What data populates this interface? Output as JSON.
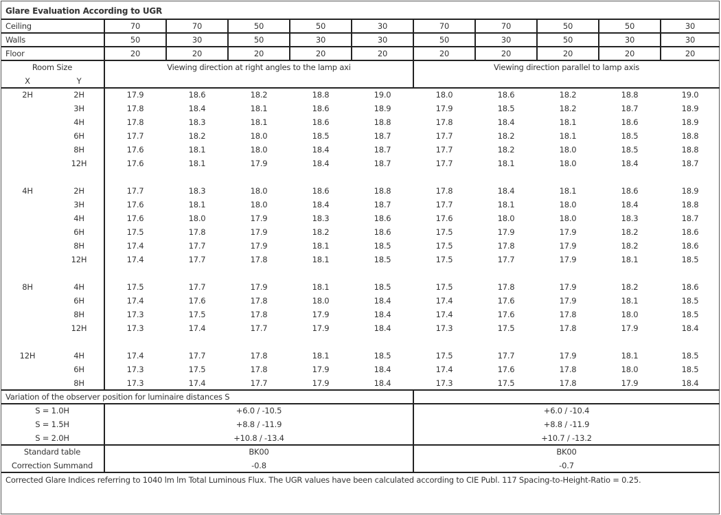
{
  "title": "Glare Evaluation According to UGR",
  "reflectances": [
    {
      "label": "Ceiling",
      "values": [
        "70",
        "70",
        "50",
        "50",
        "30",
        "70",
        "70",
        "50",
        "50",
        "30"
      ]
    },
    {
      "label": "Walls",
      "values": [
        "50",
        "30",
        "50",
        "30",
        "30",
        "50",
        "30",
        "50",
        "30",
        "30"
      ]
    },
    {
      "label": "Floor",
      "values": [
        "20",
        "20",
        "20",
        "20",
        "20",
        "20",
        "20",
        "20",
        "20",
        "20"
      ]
    }
  ],
  "header": {
    "room_size": "Room Size",
    "x": "X",
    "y": "Y",
    "right_angles": "Viewing direction at right angles to the lamp axi",
    "parallel": "Viewing direction parallel to lamp axis"
  },
  "groups": [
    {
      "x": "2H",
      "rows": [
        {
          "y": "2H",
          "values": [
            "17.9",
            "18.6",
            "18.2",
            "18.8",
            "19.0",
            "18.0",
            "18.6",
            "18.2",
            "18.8",
            "19.0"
          ]
        },
        {
          "y": "3H",
          "values": [
            "17.8",
            "18.4",
            "18.1",
            "18.6",
            "18.9",
            "17.9",
            "18.5",
            "18.2",
            "18.7",
            "18.9"
          ]
        },
        {
          "y": "4H",
          "values": [
            "17.8",
            "18.3",
            "18.1",
            "18.6",
            "18.8",
            "17.8",
            "18.4",
            "18.1",
            "18.6",
            "18.9"
          ]
        },
        {
          "y": "6H",
          "values": [
            "17.7",
            "18.2",
            "18.0",
            "18.5",
            "18.7",
            "17.7",
            "18.2",
            "18.1",
            "18.5",
            "18.8"
          ]
        },
        {
          "y": "8H",
          "values": [
            "17.6",
            "18.1",
            "18.0",
            "18.4",
            "18.7",
            "17.7",
            "18.2",
            "18.0",
            "18.5",
            "18.8"
          ]
        },
        {
          "y": "12H",
          "values": [
            "17.6",
            "18.1",
            "17.9",
            "18.4",
            "18.7",
            "17.7",
            "18.1",
            "18.0",
            "18.4",
            "18.7"
          ]
        }
      ]
    },
    {
      "x": "4H",
      "rows": [
        {
          "y": "2H",
          "values": [
            "17.7",
            "18.3",
            "18.0",
            "18.6",
            "18.8",
            "17.8",
            "18.4",
            "18.1",
            "18.6",
            "18.9"
          ]
        },
        {
          "y": "3H",
          "values": [
            "17.6",
            "18.1",
            "18.0",
            "18.4",
            "18.7",
            "17.7",
            "18.1",
            "18.0",
            "18.4",
            "18.8"
          ]
        },
        {
          "y": "4H",
          "values": [
            "17.6",
            "18.0",
            "17.9",
            "18.3",
            "18.6",
            "17.6",
            "18.0",
            "18.0",
            "18.3",
            "18.7"
          ]
        },
        {
          "y": "6H",
          "values": [
            "17.5",
            "17.8",
            "17.9",
            "18.2",
            "18.6",
            "17.5",
            "17.9",
            "17.9",
            "18.2",
            "18.6"
          ]
        },
        {
          "y": "8H",
          "values": [
            "17.4",
            "17.7",
            "17.9",
            "18.1",
            "18.5",
            "17.5",
            "17.8",
            "17.9",
            "18.2",
            "18.6"
          ]
        },
        {
          "y": "12H",
          "values": [
            "17.4",
            "17.7",
            "17.8",
            "18.1",
            "18.5",
            "17.5",
            "17.7",
            "17.9",
            "18.1",
            "18.5"
          ]
        }
      ]
    },
    {
      "x": "8H",
      "rows": [
        {
          "y": "4H",
          "values": [
            "17.5",
            "17.7",
            "17.9",
            "18.1",
            "18.5",
            "17.5",
            "17.8",
            "17.9",
            "18.2",
            "18.6"
          ]
        },
        {
          "y": "6H",
          "values": [
            "17.4",
            "17.6",
            "17.8",
            "18.0",
            "18.4",
            "17.4",
            "17.6",
            "17.9",
            "18.1",
            "18.5"
          ]
        },
        {
          "y": "8H",
          "values": [
            "17.3",
            "17.5",
            "17.8",
            "17.9",
            "18.4",
            "17.4",
            "17.6",
            "17.8",
            "18.0",
            "18.5"
          ]
        },
        {
          "y": "12H",
          "values": [
            "17.3",
            "17.4",
            "17.7",
            "17.9",
            "18.4",
            "17.3",
            "17.5",
            "17.8",
            "17.9",
            "18.4"
          ]
        }
      ]
    },
    {
      "x": "12H",
      "rows": [
        {
          "y": "4H",
          "values": [
            "17.4",
            "17.7",
            "17.8",
            "18.1",
            "18.5",
            "17.5",
            "17.7",
            "17.9",
            "18.1",
            "18.5"
          ]
        },
        {
          "y": "6H",
          "values": [
            "17.3",
            "17.5",
            "17.8",
            "17.9",
            "18.4",
            "17.4",
            "17.6",
            "17.8",
            "18.0",
            "18.5"
          ]
        },
        {
          "y": "8H",
          "values": [
            "17.3",
            "17.4",
            "17.7",
            "17.9",
            "18.4",
            "17.3",
            "17.5",
            "17.8",
            "17.9",
            "18.4"
          ]
        }
      ]
    }
  ],
  "variation": {
    "label": "Variation of the observer position for luminaire distances S",
    "rows": [
      {
        "label": "S = 1.0H",
        "right_angles": "+6.0 / -10.5",
        "parallel": "+6.0 / -10.4"
      },
      {
        "label": "S = 1.5H",
        "right_angles": "+8.8 / -11.9",
        "parallel": "+8.8 / -11.9"
      },
      {
        "label": "S = 2.0H",
        "right_angles": "+10.8 / -13.4",
        "parallel": "+10.7 / -13.2"
      }
    ]
  },
  "standard": {
    "label": "Standard table",
    "right_angles": "BK00",
    "parallel": "BK00"
  },
  "correction": {
    "label": "Correction Summand",
    "right_angles": "-0.8",
    "parallel": "-0.7"
  },
  "footer": "Corrected Glare Indices referring to 1040 lm lm Total Luminous Flux. The UGR values have been calculated according to CIE Publ. 117    Spacing-to-Height-Ratio = 0.25."
}
